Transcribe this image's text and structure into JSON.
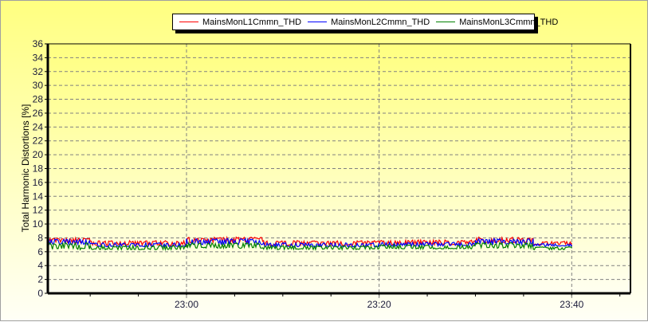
{
  "chart_data": {
    "type": "line",
    "title": "",
    "xlabel": "",
    "ylabel": "Total Harmonic Distortions [%]",
    "ylim": [
      0,
      36
    ],
    "yticks": [
      "0",
      "2",
      "4",
      "6",
      "8",
      "10",
      "12",
      "14",
      "16",
      "18",
      "20",
      "22",
      "24",
      "26",
      "28",
      "30",
      "32",
      "34",
      "36"
    ],
    "xlim": [
      "22:45.6",
      "23:46.1"
    ],
    "xticks": [
      "23:00",
      "23:20",
      "23:40"
    ],
    "grid": true,
    "legend_position": "top-center",
    "series": [
      {
        "name": "MainsMonL1Cmmn_THD",
        "color": "#ff0000",
        "segments": [
          {
            "from": "22:45.6",
            "to": "22:50",
            "low": 7.3,
            "high": 8.0
          },
          {
            "from": "22:50",
            "to": "23:00",
            "low": 6.9,
            "high": 7.6
          },
          {
            "from": "23:00",
            "to": "23:08",
            "low": 7.3,
            "high": 8.1
          },
          {
            "from": "23:08",
            "to": "23:20",
            "low": 6.9,
            "high": 7.6
          },
          {
            "from": "23:20",
            "to": "23:30",
            "low": 7.0,
            "high": 7.7
          },
          {
            "from": "23:30",
            "to": "23:36",
            "low": 7.3,
            "high": 8.1
          },
          {
            "from": "23:36",
            "to": "23:40",
            "low": 7.0,
            "high": 7.5
          }
        ]
      },
      {
        "name": "MainsMonL2Cmmn_THD",
        "color": "#0000ff",
        "segments": [
          {
            "from": "22:45.6",
            "to": "22:50",
            "low": 7.0,
            "high": 7.8
          },
          {
            "from": "22:50",
            "to": "23:00",
            "low": 6.7,
            "high": 7.3
          },
          {
            "from": "23:00",
            "to": "23:08",
            "low": 7.0,
            "high": 7.9
          },
          {
            "from": "23:08",
            "to": "23:20",
            "low": 6.7,
            "high": 7.3
          },
          {
            "from": "23:20",
            "to": "23:30",
            "low": 6.8,
            "high": 7.4
          },
          {
            "from": "23:30",
            "to": "23:36",
            "low": 7.0,
            "high": 7.9
          },
          {
            "from": "23:36",
            "to": "23:40",
            "low": 6.8,
            "high": 7.2
          }
        ]
      },
      {
        "name": "MainsMonL3Cmmn_THD",
        "color": "#008000",
        "segments": [
          {
            "from": "22:45.6",
            "to": "22:50",
            "low": 6.3,
            "high": 7.3
          },
          {
            "from": "22:50",
            "to": "23:00",
            "low": 6.3,
            "high": 6.9
          },
          {
            "from": "23:00",
            "to": "23:08",
            "low": 6.5,
            "high": 7.3
          },
          {
            "from": "23:08",
            "to": "23:20",
            "low": 6.3,
            "high": 6.9
          },
          {
            "from": "23:20",
            "to": "23:30",
            "low": 6.4,
            "high": 7.0
          },
          {
            "from": "23:30",
            "to": "23:36",
            "low": 6.5,
            "high": 7.3
          },
          {
            "from": "23:36",
            "to": "23:40",
            "low": 6.3,
            "high": 6.7
          }
        ]
      }
    ]
  }
}
